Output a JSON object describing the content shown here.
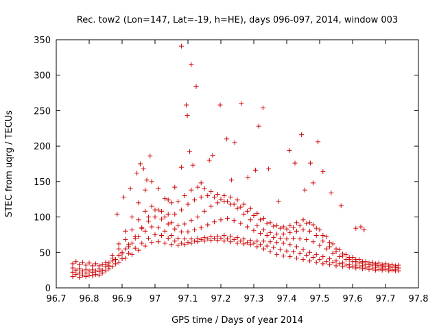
{
  "chart_data": {
    "type": "scatter",
    "title": "Rec. tow2 (Lon=147, Lat=-19, h=HE), days 096-097, 2014, window 003",
    "xlabel": "GPS time / Days of year 2014",
    "ylabel": "STEC from uqrg / TECUs",
    "xlim": [
      96.7,
      97.8
    ],
    "ylim": [
      0,
      350
    ],
    "xticks": [
      "96.7",
      "96.8",
      "96.9",
      "97",
      "97.1",
      "97.2",
      "97.3",
      "97.4",
      "97.5",
      "97.6",
      "97.7",
      "97.8"
    ],
    "yticks": [
      "0",
      "50",
      "100",
      "150",
      "200",
      "250",
      "300",
      "350"
    ],
    "grid": false,
    "legend": "none",
    "marker": "+",
    "color": "#cc0000",
    "series": [
      {
        "x": [
          96.75,
          96.77,
          96.79,
          96.81,
          96.83,
          96.85,
          96.87,
          96.89,
          96.91,
          96.93,
          96.95,
          96.97,
          96.99,
          97.01,
          97.03,
          97.05,
          97.07,
          97.09,
          97.11,
          97.13,
          97.15,
          97.17,
          97.19,
          97.21,
          97.23,
          97.25,
          97.27,
          97.29,
          97.31,
          97.33,
          97.35,
          97.37,
          97.39,
          97.41,
          97.43,
          97.45,
          97.47,
          97.49,
          97.51,
          97.53,
          97.55,
          97.57,
          97.59,
          97.61,
          97.63,
          97.65,
          97.67,
          97.69,
          97.71,
          97.73
        ],
        "y": [
          16,
          15,
          16,
          17,
          18,
          24,
          30,
          36,
          42,
          47,
          53,
          59,
          64,
          65,
          63,
          61,
          60,
          61,
          63,
          65,
          66,
          67,
          67,
          66,
          65,
          63,
          62,
          61,
          58,
          55,
          51,
          47,
          45,
          44,
          42,
          40,
          38,
          36,
          34,
          33,
          31,
          30,
          29,
          28,
          27,
          26,
          25,
          25,
          24,
          24
        ]
      },
      {
        "x": [
          96.75,
          96.77,
          96.79,
          96.81,
          96.83,
          96.85,
          96.87,
          96.89,
          96.91,
          96.93,
          96.95,
          96.97,
          96.99,
          97.01,
          97.03,
          97.05,
          97.07,
          97.09,
          97.11,
          97.13,
          97.15,
          97.17,
          97.19,
          97.21,
          97.23,
          97.25,
          97.27,
          97.29,
          97.31,
          97.33,
          97.35,
          97.37,
          97.39,
          97.41,
          97.43,
          97.45,
          97.47,
          97.49,
          97.51,
          97.53,
          97.55,
          97.57,
          97.59,
          97.61,
          97.63,
          97.65,
          97.67,
          97.69,
          97.71,
          97.73
        ],
        "y": [
          22,
          21,
          21,
          22,
          23,
          30,
          38,
          46,
          55,
          63,
          72,
          80,
          86,
          85,
          80,
          74,
          70,
          69,
          69,
          70,
          71,
          72,
          73,
          74,
          73,
          71,
          69,
          67,
          66,
          66,
          65,
          64,
          63,
          61,
          58,
          54,
          50,
          47,
          44,
          41,
          38,
          35,
          33,
          32,
          31,
          30,
          29,
          28,
          27,
          26
        ]
      },
      {
        "x": [
          96.75,
          96.77,
          96.79,
          96.81,
          96.83,
          96.85,
          96.87,
          96.89,
          96.91,
          96.93,
          96.95,
          96.97,
          96.99,
          97.01,
          97.03,
          97.05,
          97.07,
          97.09,
          97.11,
          97.13,
          97.15,
          97.17,
          97.19,
          97.21,
          97.23,
          97.25,
          97.27,
          97.29,
          97.31,
          97.33,
          97.35,
          97.37,
          97.39,
          97.41,
          97.43,
          97.45,
          97.47,
          97.49,
          97.51,
          97.53,
          97.55,
          97.57,
          97.59,
          97.61,
          97.63,
          97.65,
          97.67,
          97.69,
          97.71,
          97.73
        ],
        "y": [
          28,
          27,
          26,
          26,
          27,
          33,
          42,
          55,
          68,
          82,
          96,
          108,
          115,
          110,
          100,
          92,
          88,
          90,
          95,
          100,
          108,
          115,
          120,
          122,
          118,
          112,
          104,
          96,
          88,
          82,
          78,
          76,
          76,
          78,
          80,
          82,
          80,
          74,
          66,
          58,
          51,
          45,
          40,
          37,
          35,
          33,
          32,
          31,
          30,
          29
        ]
      },
      {
        "x": [
          96.75,
          96.77,
          96.79,
          96.81,
          96.83,
          96.85,
          96.87,
          96.89,
          96.91,
          96.93,
          96.95,
          96.97,
          96.99,
          97.01,
          97.03,
          97.05,
          97.07,
          97.09,
          97.11,
          97.13,
          97.15,
          97.17,
          97.19,
          97.21,
          97.23,
          97.25,
          97.27,
          97.29,
          97.31,
          97.33,
          97.35,
          97.37,
          97.39,
          97.41,
          97.43,
          97.45,
          97.47,
          97.49,
          97.51,
          97.53,
          97.55,
          97.57,
          97.59,
          97.61,
          97.63,
          97.65,
          97.67,
          97.69,
          97.71,
          97.73
        ],
        "y": [
          34,
          33,
          32,
          31,
          31,
          36,
          46,
          62,
          80,
          100,
          120,
          138,
          150,
          140,
          126,
          120,
          122,
          130,
          138,
          142,
          140,
          136,
          132,
          130,
          128,
          124,
          118,
          112,
          105,
          98,
          92,
          88,
          86,
          88,
          92,
          96,
          92,
          84,
          74,
          64,
          55,
          48,
          43,
          40,
          37,
          35,
          34,
          33,
          32,
          31
        ]
      },
      {
        "x": [
          96.76,
          96.78,
          96.8,
          96.82,
          96.84,
          96.86,
          96.88,
          96.9,
          96.92,
          96.94,
          96.96,
          96.98,
          97.0,
          97.02,
          97.04,
          97.06,
          97.08,
          97.1,
          97.12,
          97.14,
          97.16,
          97.18,
          97.2,
          97.22,
          97.24,
          97.26,
          97.28,
          97.3,
          97.32,
          97.34,
          97.36,
          97.38,
          97.4,
          97.42,
          97.44,
          97.46,
          97.48,
          97.5,
          97.52,
          97.54,
          97.56,
          97.58,
          97.6,
          97.62,
          97.64,
          97.66,
          97.68,
          97.7,
          97.72,
          97.74
        ],
        "y": [
          19,
          18,
          18,
          19,
          21,
          27,
          34,
          41,
          49,
          56,
          63,
          70,
          75,
          74,
          70,
          66,
          63,
          64,
          66,
          68,
          69,
          70,
          70,
          69,
          68,
          66,
          64,
          63,
          61,
          59,
          57,
          54,
          52,
          51,
          49,
          46,
          43,
          40,
          37,
          36,
          34,
          32,
          30,
          29,
          28,
          27,
          26,
          26,
          25,
          24
        ]
      },
      {
        "x": [
          96.76,
          96.78,
          96.8,
          96.82,
          96.84,
          96.86,
          96.88,
          96.9,
          96.92,
          96.94,
          96.96,
          96.98,
          97.0,
          97.02,
          97.04,
          97.06,
          97.08,
          97.1,
          97.12,
          97.14,
          97.16,
          97.18,
          97.2,
          97.22,
          97.24,
          97.26,
          97.28,
          97.3,
          97.32,
          97.34,
          97.36,
          97.38,
          97.4,
          97.42,
          97.44,
          97.46,
          97.48,
          97.5,
          97.52,
          97.54,
          97.56,
          97.58,
          97.6,
          97.62,
          97.64,
          97.66,
          97.68,
          97.7,
          97.72,
          97.74
        ],
        "y": [
          25,
          24,
          24,
          24,
          25,
          31,
          40,
          50,
          61,
          72,
          84,
          94,
          100,
          97,
          90,
          83,
          79,
          79,
          82,
          85,
          89,
          93,
          96,
          98,
          95,
          91,
          86,
          81,
          77,
          74,
          71,
          70,
          69,
          70,
          69,
          68,
          65,
          60,
          55,
          49,
          44,
          40,
          37,
          35,
          33,
          32,
          31,
          30,
          29,
          28
        ]
      },
      {
        "x": [
          96.76,
          96.78,
          96.8,
          96.82,
          96.84,
          96.86,
          96.88,
          96.9,
          96.92,
          96.94,
          96.96,
          96.98,
          97.0,
          97.02,
          97.04,
          97.06,
          97.08,
          97.1,
          97.12,
          97.14,
          97.16,
          97.18,
          97.2,
          97.22,
          97.24,
          97.26,
          97.28,
          97.3,
          97.32,
          97.34,
          97.36,
          97.38,
          97.4,
          97.42,
          97.44,
          97.46,
          97.48,
          97.5,
          97.52,
          97.54,
          97.56,
          97.58,
          97.6,
          97.62,
          97.64,
          97.66,
          97.68,
          97.7,
          97.72,
          97.74
        ],
        "y": [
          37,
          36,
          35,
          34,
          33,
          35,
          40,
          48,
          58,
          70,
          85,
          100,
          110,
          108,
          104,
          104,
          110,
          118,
          124,
          128,
          130,
          128,
          125,
          122,
          118,
          114,
          108,
          102,
          96,
          91,
          87,
          84,
          83,
          85,
          88,
          91,
          89,
          82,
          72,
          62,
          54,
          47,
          43,
          40,
          37,
          36,
          35,
          34,
          33,
          32
        ]
      },
      {
        "x": [
          96.885,
          96.905,
          96.925,
          96.945,
          96.955,
          96.965,
          96.975,
          96.985,
          97.04,
          97.06,
          97.08,
          97.095,
          97.105,
          97.115,
          97.14,
          97.165,
          97.175,
          97.198,
          97.218,
          97.232,
          97.242,
          97.262,
          97.282,
          97.305,
          97.315,
          97.328,
          97.345,
          97.375,
          97.408,
          97.425,
          97.445,
          97.455,
          97.472,
          97.48,
          97.495,
          97.51,
          97.535,
          97.565,
          97.61,
          97.625,
          97.635
        ],
        "y": [
          104,
          128,
          140,
          162,
          175,
          168,
          152,
          186,
          124,
          142,
          170,
          258,
          192,
          173,
          148,
          180,
          187,
          258,
          210,
          152,
          205,
          260,
          156,
          166,
          228,
          254,
          168,
          122,
          194,
          176,
          216,
          138,
          176,
          148,
          206,
          164,
          134,
          116,
          84,
          86,
          82
        ]
      },
      {
        "x": [
          97.08,
          97.11,
          97.098,
          97.125
        ],
        "y": [
          341,
          315,
          243,
          284
        ]
      }
    ]
  }
}
